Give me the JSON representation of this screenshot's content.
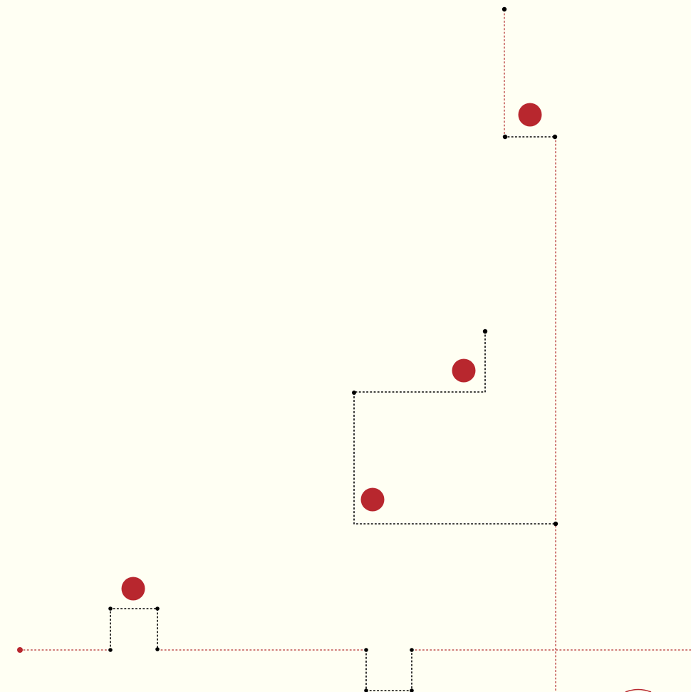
{
  "colors": {
    "background": "#fffff3",
    "accent": "#b8272e",
    "route": "#c0504d",
    "path": "#000000",
    "node": "#000000"
  },
  "diagram": {
    "description_free": true,
    "edge_styles": [
      "dotted"
    ],
    "path_counts": {
      "red_route_segments": 4,
      "black_path_segments": 5,
      "red_markers": 5,
      "black_nodes": 16
    }
  }
}
